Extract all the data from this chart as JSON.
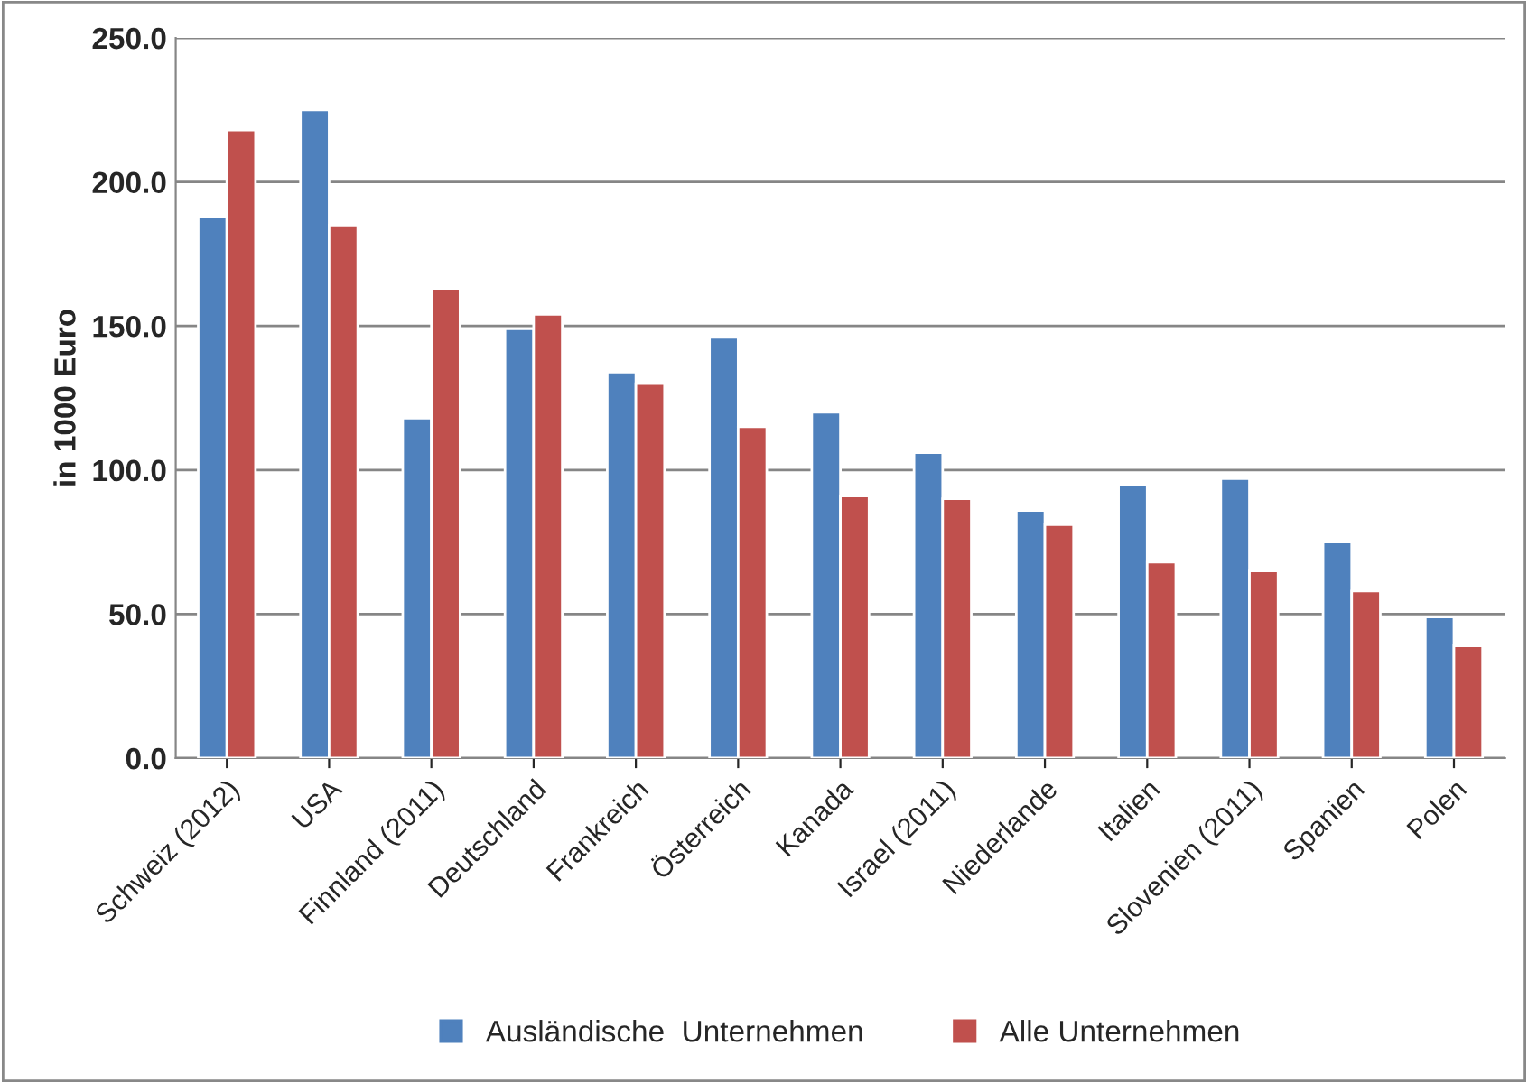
{
  "chart_data": {
    "type": "bar",
    "ylabel": "in 1000 Euro",
    "categories": [
      "Schweiz (2012)",
      "USA",
      "Finnland (2011)",
      "Deutschland",
      "Frankreich",
      "Österreich",
      "Kanada",
      "Israel (2011)",
      "Niederlande",
      "Italien",
      "Slovenien (2011)",
      "Spanien",
      "Polen"
    ],
    "series": [
      {
        "name": "Ausländische  Unternehmen",
        "color": "#4f81bd",
        "values": [
          188,
          225,
          118,
          149,
          134,
          146,
          120,
          106,
          86,
          95,
          97,
          75,
          49
        ]
      },
      {
        "name": "Alle Unternehmen",
        "color": "#c0504d",
        "values": [
          218,
          185,
          163,
          154,
          130,
          115,
          91,
          90,
          81,
          68,
          65,
          58,
          39
        ]
      }
    ],
    "ylim": [
      0,
      250
    ],
    "yticks": [
      {
        "value": 0,
        "label": "0.0"
      },
      {
        "value": 50,
        "label": "50.0"
      },
      {
        "value": 100,
        "label": "100.0"
      },
      {
        "value": 150,
        "label": "150.0"
      },
      {
        "value": 200,
        "label": "200.0"
      },
      {
        "value": 250,
        "label": "250.0"
      }
    ],
    "grid": "y",
    "legend": "bottom"
  }
}
